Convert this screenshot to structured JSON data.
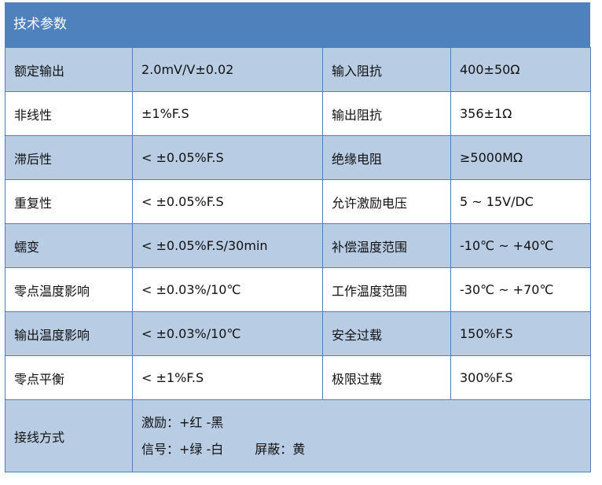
{
  "title": "技术参数",
  "rows": [
    [
      "额定输出",
      "2.0mV/V±0.02",
      "输入阻抗",
      "400±50Ω"
    ],
    [
      "非线性",
      "±1%F.S",
      "输出阻抗",
      "356±1Ω"
    ],
    [
      "滞后性",
      "< ±0.05%F.S",
      "绝缘电阻",
      "≥5000MΩ"
    ],
    [
      "重复性",
      "< ±0.05%F.S",
      "允许激励电压",
      "5 ~ 15V/DC"
    ],
    [
      "蠕变",
      "< ±0.05%F.S/30min",
      "补偿温度范围",
      "-10℃ ~ +40℃"
    ],
    [
      "零点温度影响",
      "< ±0.03%/10℃",
      "工作温度范围",
      "-30℃ ~ +70℃"
    ],
    [
      "输出温度影响",
      "< ±0.03%/10℃",
      "安全过载",
      "150%F.S"
    ],
    [
      "零点平衡",
      "< ±1%F.S",
      "极限过载",
      "300%F.S"
    ]
  ],
  "wiring": {
    "label": "接线方式",
    "excitation": "激励：+红 -黑",
    "signal": "信号：+绿 -白",
    "shield": "屏蔽：黄"
  },
  "colors": {
    "header": "#4f81bd",
    "band": "#b8cce4"
  }
}
